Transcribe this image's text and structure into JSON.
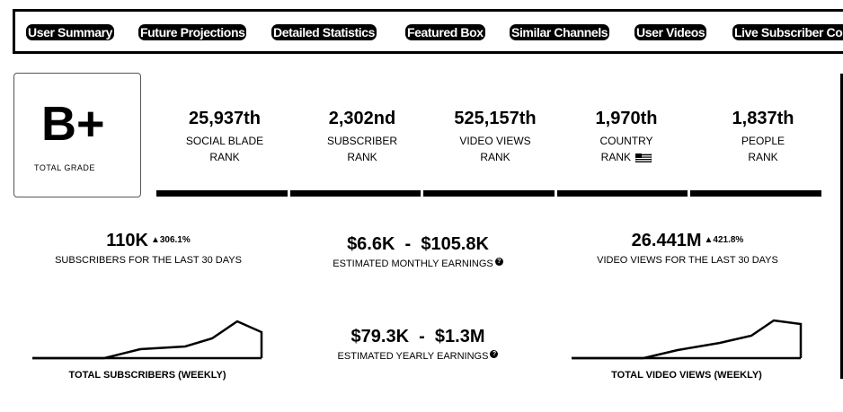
{
  "tabs": [
    {
      "label": "User Summary"
    },
    {
      "label": "Future Projections"
    },
    {
      "label": "Detailed Statistics"
    },
    {
      "label": "Featured Box"
    },
    {
      "label": "Similar Channels"
    },
    {
      "label": "User Videos"
    },
    {
      "label": "Live Subscriber Count"
    }
  ],
  "grade": {
    "letter": "B+",
    "caption": "TOTAL GRADE"
  },
  "ranks": [
    {
      "value": "25,937th",
      "label1": "SOCIAL BLADE",
      "label2": "RANK"
    },
    {
      "value": "2,302nd",
      "label1": "SUBSCRIBER",
      "label2": "RANK"
    },
    {
      "value": "525,157th",
      "label1": "VIDEO VIEWS",
      "label2": "RANK"
    },
    {
      "value": "1,970th",
      "label1": "COUNTRY",
      "label2": "RANK"
    },
    {
      "value": "1,837th",
      "label1": "PEOPLE",
      "label2": "RANK"
    }
  ],
  "stats": {
    "subscribers_30d": {
      "value": "110K",
      "delta": "▲306.1%",
      "caption": "SUBSCRIBERS FOR THE LAST 30 DAYS"
    },
    "monthly_earnings": {
      "value": "$6.6K  -  $105.8K",
      "caption": "ESTIMATED MONTHLY EARNINGS"
    },
    "views_30d": {
      "value": "26.441M",
      "delta": "▲421.8%",
      "caption": "VIDEO VIEWS FOR THE LAST 30 DAYS"
    },
    "yearly_earnings": {
      "value": "$79.3K  -  $1.3M",
      "caption": "ESTIMATED YEARLY EARNINGS"
    }
  },
  "charts": {
    "subscribers_weekly": {
      "caption": "TOTAL SUBSCRIBERS (WEEKLY)"
    },
    "views_weekly": {
      "caption": "TOTAL VIDEO VIEWS (WEEKLY)"
    }
  },
  "icons": {
    "help": "question-circle-icon",
    "flag": "us-flag-icon"
  }
}
